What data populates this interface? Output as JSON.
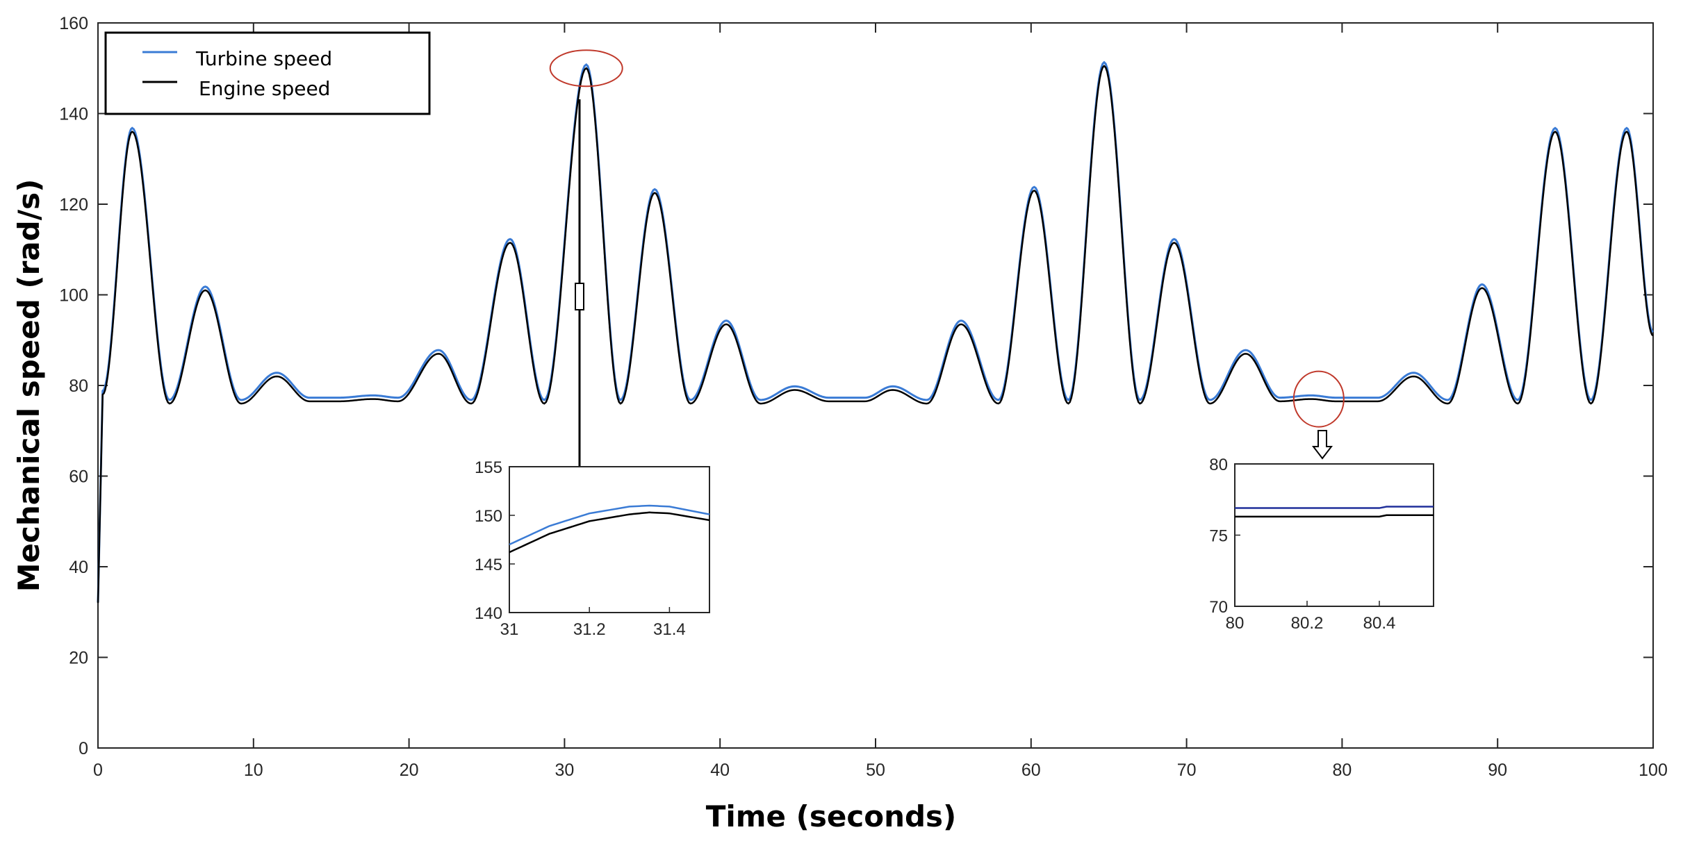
{
  "chart_data": {
    "type": "line",
    "xlabel": "Time (seconds)",
    "ylabel": "Mechanical speed (rad/s)",
    "xlim": [
      0,
      100
    ],
    "ylim": [
      0,
      160
    ],
    "x_ticks": [
      "0",
      "10",
      "20",
      "30",
      "40",
      "50",
      "60",
      "70",
      "80",
      "90",
      "100"
    ],
    "y_ticks": [
      "0",
      "20",
      "40",
      "60",
      "80",
      "100",
      "120",
      "140",
      "160"
    ],
    "grid": false,
    "legend_position": "top-left",
    "series": [
      {
        "name": "Turbine speed",
        "color": "#3a7bd5"
      },
      {
        "name": "Engine speed",
        "color": "#000000"
      }
    ],
    "engine_speed_profile": {
      "start": {
        "x": 0,
        "y": 32
      },
      "x": [
        0.3,
        2.2,
        4.6,
        6.9,
        9.2,
        11.5,
        13.6,
        15.5,
        17.7,
        19.3,
        21.9,
        24.0,
        26.5,
        28.7,
        31.4,
        33.6,
        35.8,
        38.1,
        40.4,
        42.6,
        44.8,
        47.0,
        49.3,
        51.1,
        53.3,
        55.5,
        57.9,
        60.2,
        62.4,
        64.7,
        67.0,
        69.2,
        71.5,
        73.8,
        76.0,
        78.0,
        79.6,
        80.9,
        82.3,
        84.6,
        86.8,
        89.0,
        91.3,
        93.7,
        96.0,
        98.3,
        100.0
      ],
      "y": [
        78,
        136,
        76,
        101,
        76,
        82,
        76.5,
        76.5,
        77,
        76.5,
        87,
        76,
        111.5,
        76,
        150,
        76,
        122.5,
        76,
        93.5,
        76,
        79,
        76.5,
        76.5,
        79,
        76,
        93.5,
        76,
        123,
        76,
        150.5,
        76,
        111.5,
        76,
        87,
        76.5,
        77,
        76.5,
        76.5,
        76.5,
        82,
        76,
        101.5,
        76,
        136,
        76,
        136,
        91
      ],
      "turbine_offset": 0.8
    },
    "annotations": [
      {
        "type": "circle",
        "x": 31.4,
        "y": 150,
        "color": "#c0392b"
      },
      {
        "type": "circle",
        "x": 78.5,
        "y": 77,
        "color": "#c0392b"
      }
    ],
    "insets": [
      {
        "xlim": [
          31,
          31.5
        ],
        "ylim": [
          140,
          155
        ],
        "x_ticks": [
          "31",
          "31.2",
          "31.4"
        ],
        "y_ticks": [
          "140",
          "145",
          "150",
          "155"
        ],
        "series": [
          {
            "name": "Turbine speed",
            "x": [
              31,
              31.1,
              31.2,
              31.3,
              31.35,
              31.4,
              31.5
            ],
            "y": [
              147,
              148.9,
              150.2,
              150.9,
              151.0,
              150.9,
              150.1
            ]
          },
          {
            "name": "Engine speed",
            "x": [
              31,
              31.1,
              31.2,
              31.3,
              31.35,
              31.4,
              31.5
            ],
            "y": [
              146.2,
              148.1,
              149.4,
              150.1,
              150.3,
              150.2,
              149.5
            ]
          }
        ]
      },
      {
        "xlim": [
          80,
          80.55
        ],
        "ylim": [
          70,
          80
        ],
        "x_ticks": [
          "80",
          "80.2",
          "80.4"
        ],
        "y_ticks": [
          "70",
          "75",
          "80"
        ],
        "series": [
          {
            "name": "Turbine speed",
            "x": [
              80,
              80.2,
              80.4,
              80.42,
              80.55
            ],
            "y": [
              76.9,
              76.9,
              76.9,
              77.0,
              77.0
            ]
          },
          {
            "name": "Engine speed",
            "x": [
              80,
              80.2,
              80.4,
              80.42,
              80.55
            ],
            "y": [
              76.3,
              76.3,
              76.3,
              76.4,
              76.4
            ]
          }
        ]
      }
    ]
  }
}
